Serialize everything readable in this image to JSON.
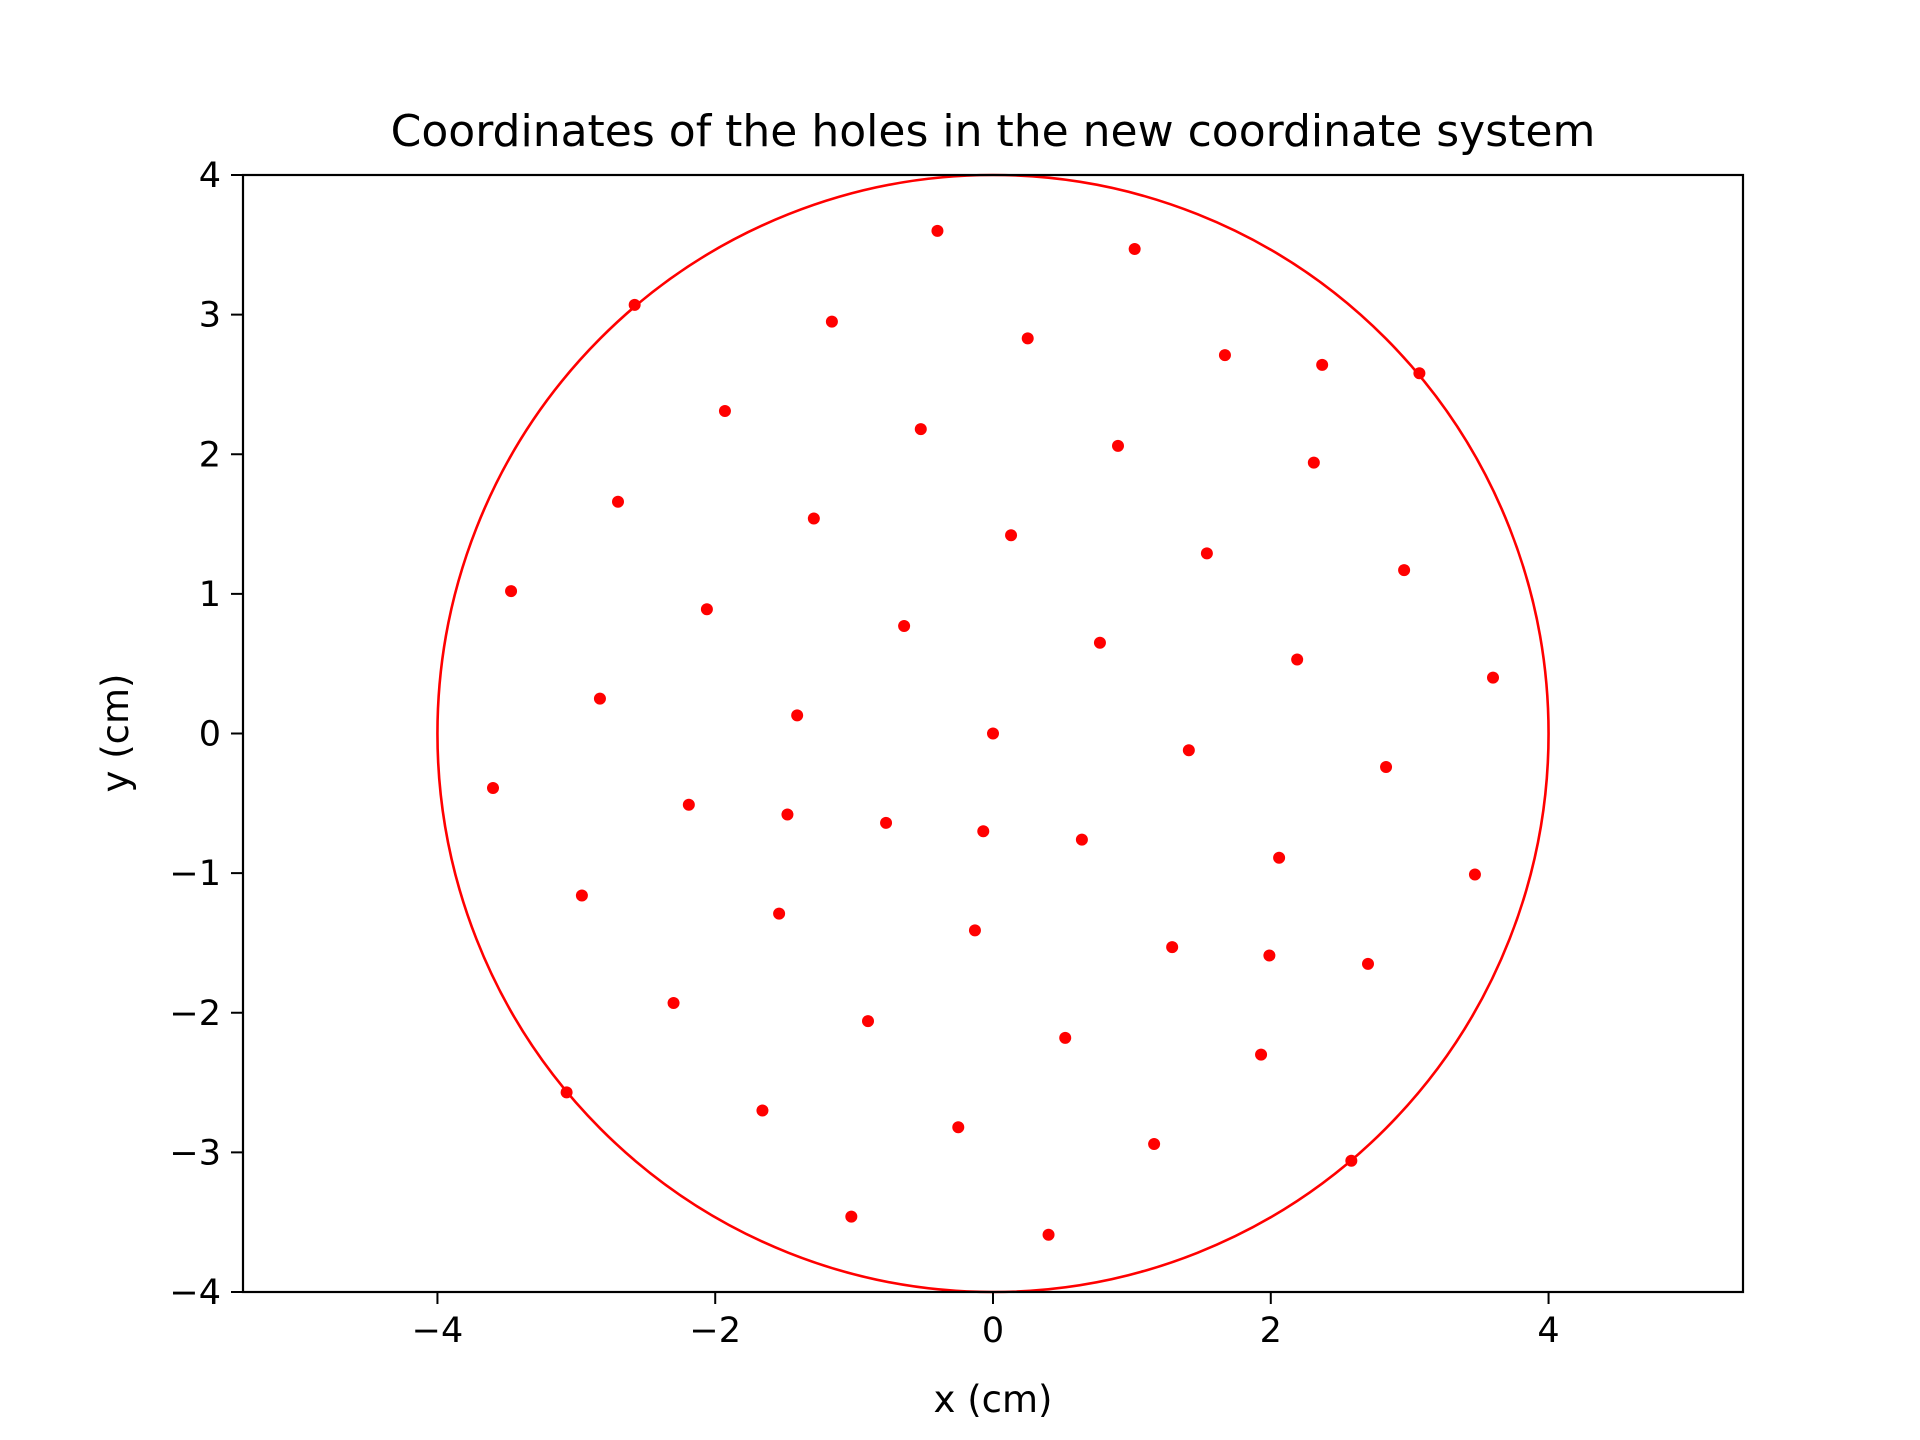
{
  "chart_data": {
    "type": "scatter",
    "title": "Coordinates of the holes in the new coordinate system",
    "xlabel": "x (cm)",
    "ylabel": "y (cm)",
    "xlim": [
      -5.4,
      5.4
    ],
    "ylim": [
      -4,
      4
    ],
    "xticks": [
      -4,
      -2,
      0,
      2,
      4
    ],
    "xtick_labels": [
      "−4",
      "−2",
      "0",
      "2",
      "4"
    ],
    "yticks": [
      -4,
      -3,
      -2,
      -1,
      0,
      1,
      2,
      3,
      4
    ],
    "ytick_labels": [
      "−4",
      "−3",
      "−2",
      "−1",
      "0",
      "1",
      "2",
      "3",
      "4"
    ],
    "grid": false,
    "marker_color": "#ff0000",
    "circle": {
      "center": [
        0,
        0
      ],
      "radius": 4,
      "color": "#ff0000"
    },
    "points": [
      [
        -0.4,
        3.6
      ],
      [
        1.02,
        3.47
      ],
      [
        -2.58,
        3.07
      ],
      [
        -1.16,
        2.95
      ],
      [
        0.25,
        2.83
      ],
      [
        1.67,
        2.71
      ],
      [
        2.37,
        2.64
      ],
      [
        3.07,
        2.58
      ],
      [
        -1.93,
        2.31
      ],
      [
        -0.52,
        2.18
      ],
      [
        0.9,
        2.06
      ],
      [
        2.31,
        1.94
      ],
      [
        -2.7,
        1.66
      ],
      [
        -1.29,
        1.54
      ],
      [
        0.13,
        1.42
      ],
      [
        1.54,
        1.29
      ],
      [
        2.96,
        1.17
      ],
      [
        -3.47,
        1.02
      ],
      [
        -2.06,
        0.89
      ],
      [
        -0.64,
        0.77
      ],
      [
        0.77,
        0.65
      ],
      [
        2.19,
        0.53
      ],
      [
        3.6,
        0.4
      ],
      [
        -2.83,
        0.25
      ],
      [
        -1.41,
        0.13
      ],
      [
        0,
        0
      ],
      [
        1.41,
        -0.12
      ],
      [
        2.83,
        -0.24
      ],
      [
        -3.6,
        -0.39
      ],
      [
        -2.19,
        -0.51
      ],
      [
        -1.48,
        -0.58
      ],
      [
        -0.77,
        -0.64
      ],
      [
        -0.07,
        -0.7
      ],
      [
        0.64,
        -0.76
      ],
      [
        2.06,
        -0.89
      ],
      [
        3.47,
        -1.01
      ],
      [
        -2.96,
        -1.16
      ],
      [
        -1.54,
        -1.29
      ],
      [
        -0.13,
        -1.41
      ],
      [
        1.29,
        -1.53
      ],
      [
        1.99,
        -1.59
      ],
      [
        2.7,
        -1.65
      ],
      [
        -2.3,
        -1.93
      ],
      [
        -0.9,
        -2.06
      ],
      [
        0.52,
        -2.18
      ],
      [
        1.93,
        -2.3
      ],
      [
        -3.07,
        -2.57
      ],
      [
        -1.66,
        -2.7
      ],
      [
        -0.25,
        -2.82
      ],
      [
        1.16,
        -2.94
      ],
      [
        2.58,
        -3.06
      ],
      [
        -1.02,
        -3.46
      ],
      [
        0.4,
        -3.59
      ]
    ]
  }
}
